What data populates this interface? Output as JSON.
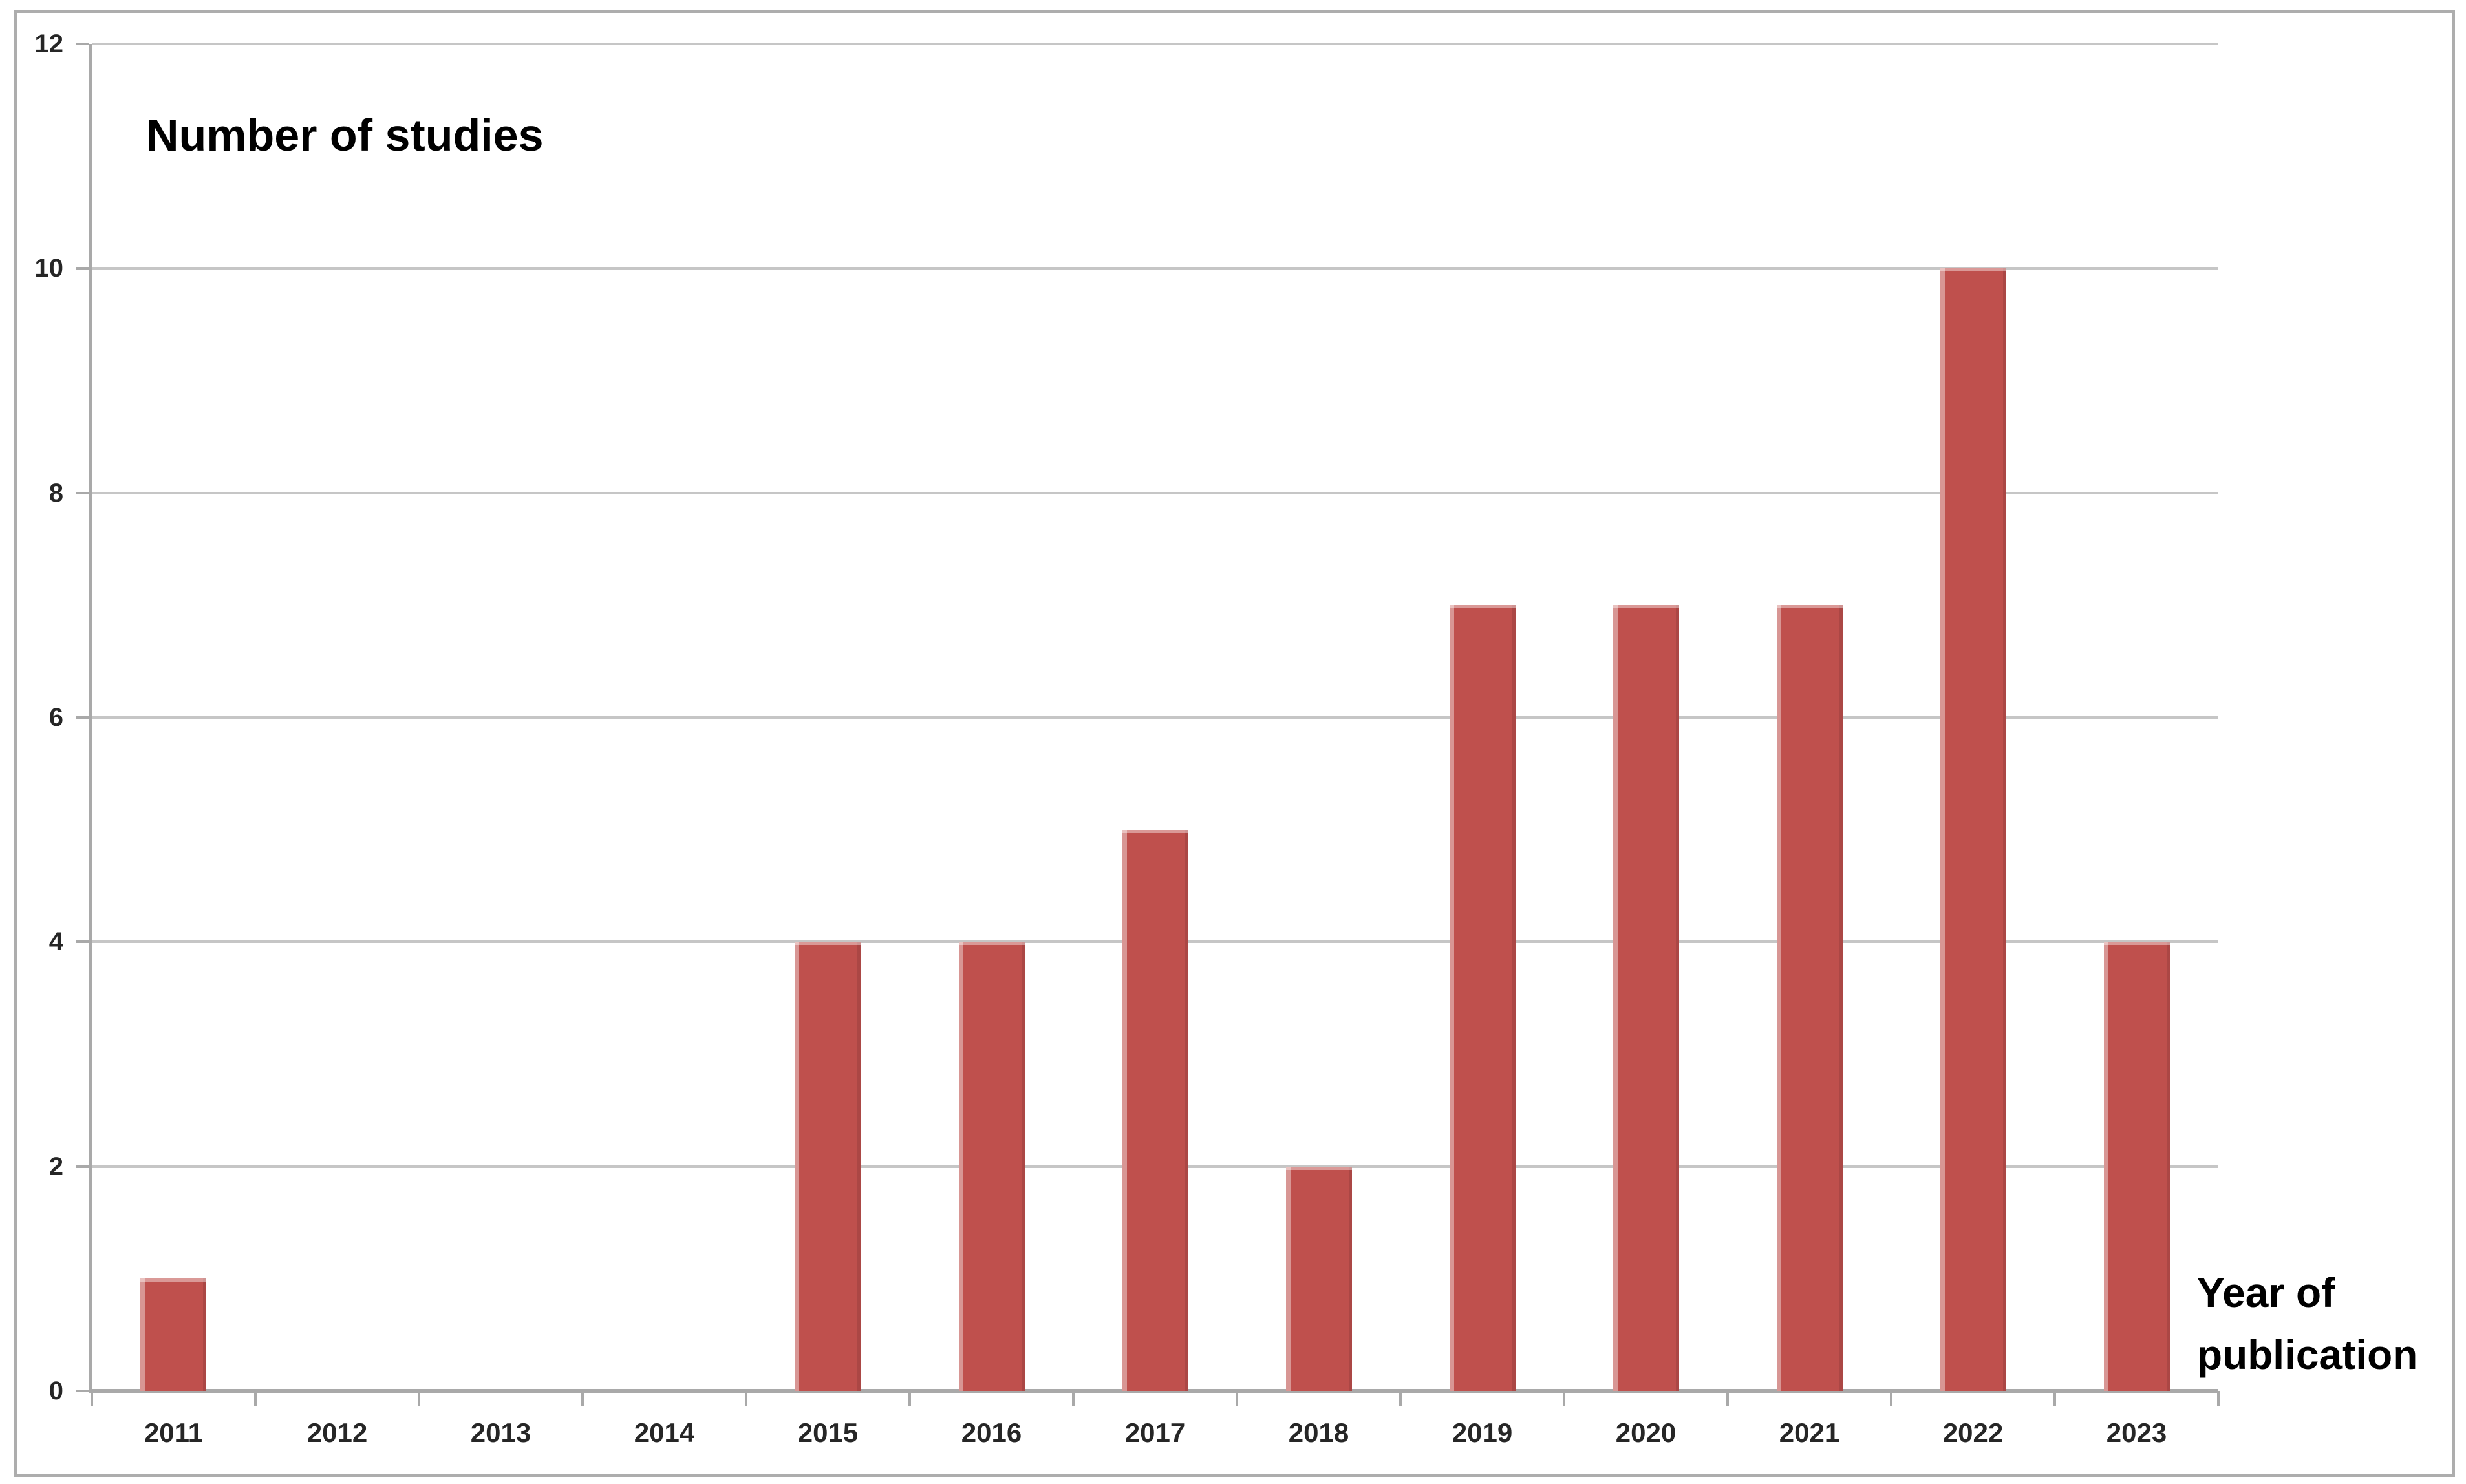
{
  "chart_data": {
    "type": "bar",
    "title": "Number of studies",
    "xlabel": "Year of publication",
    "xlabel_lines": [
      "Year of",
      "publication"
    ],
    "ylabel": "",
    "categories": [
      "2011",
      "2012",
      "2013",
      "2014",
      "2015",
      "2016",
      "2017",
      "2018",
      "2019",
      "2020",
      "2021",
      "2022",
      "2023"
    ],
    "values": [
      1,
      0,
      0,
      0,
      4,
      4,
      5,
      2,
      7,
      7,
      7,
      10,
      4
    ],
    "ylim": [
      0,
      12
    ],
    "yticks": [
      0,
      2,
      4,
      6,
      8,
      10,
      12
    ],
    "grid": "horizontal gridlines at every y tick, on",
    "legend_position": "none",
    "colors": {
      "bar_fill": "#BF504D",
      "bar_highlight": "#EBC0BE",
      "gridline": "#C6C6C6",
      "axis_line": "#A9A9A9",
      "tick_label_text": "#262626",
      "label_text": "#000000",
      "figure_border": "#ADADAD",
      "background": "#FFFFFF"
    }
  }
}
